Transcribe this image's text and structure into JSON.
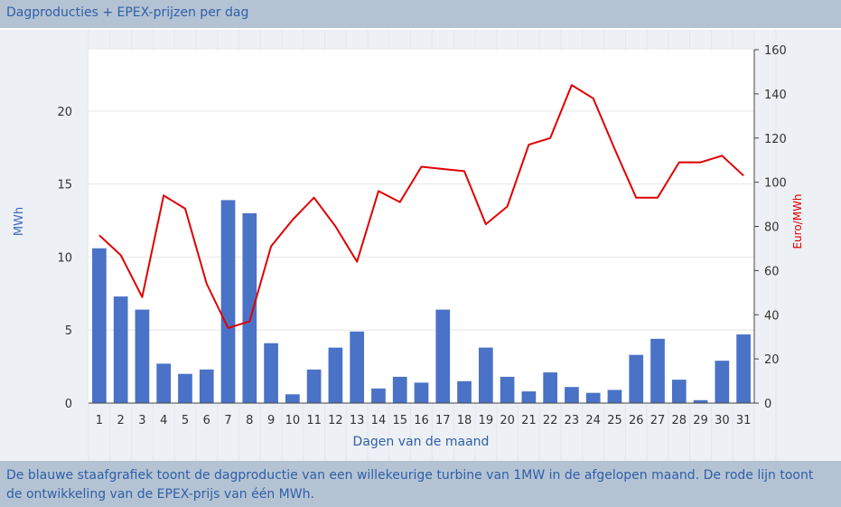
{
  "header": {
    "title": "Dagproducties + EPEX-prijzen per dag"
  },
  "footer": {
    "text": "De blauwe staafgrafiek toont de dagproductie van een willekeurige turbine van 1MW in de afgelopen maand. De rode lijn toont de ontwikkeling van de EPEX-prijs van één MWh."
  },
  "chart_data": {
    "type": "bar+line",
    "x": [
      1,
      2,
      3,
      4,
      5,
      6,
      7,
      8,
      9,
      10,
      11,
      12,
      13,
      14,
      15,
      16,
      17,
      18,
      19,
      20,
      21,
      22,
      23,
      24,
      25,
      26,
      27,
      28,
      29,
      30,
      31
    ],
    "xlabel": "Dagen van de maand",
    "y_left": {
      "label": "MWh",
      "ticks": [
        0,
        5,
        10,
        15,
        20
      ],
      "range": [
        0,
        24.2
      ]
    },
    "y_right": {
      "label": "Euro/MWh",
      "ticks": [
        0,
        20,
        40,
        60,
        80,
        100,
        120,
        140,
        160
      ],
      "range": [
        0,
        160
      ]
    },
    "series": [
      {
        "kind": "bar",
        "axis": "left",
        "color": "#4a72c6",
        "values": [
          10.6,
          7.3,
          6.4,
          2.7,
          2.0,
          2.3,
          13.9,
          13.0,
          4.1,
          0.6,
          2.3,
          3.8,
          4.9,
          1.0,
          1.8,
          1.4,
          6.4,
          1.5,
          3.8,
          1.8,
          0.8,
          2.1,
          1.1,
          0.7,
          0.9,
          3.3,
          4.4,
          1.6,
          0.2,
          2.9,
          4.7
        ]
      },
      {
        "kind": "line",
        "axis": "right",
        "color": "#e00000",
        "values": [
          76,
          67,
          48,
          94,
          88,
          54,
          34,
          37,
          71,
          83,
          93,
          80,
          64,
          96,
          91,
          107,
          106,
          105,
          81,
          89,
          117,
          120,
          144,
          138,
          115,
          93,
          93,
          109,
          109,
          112,
          103
        ]
      }
    ],
    "grid": true
  }
}
